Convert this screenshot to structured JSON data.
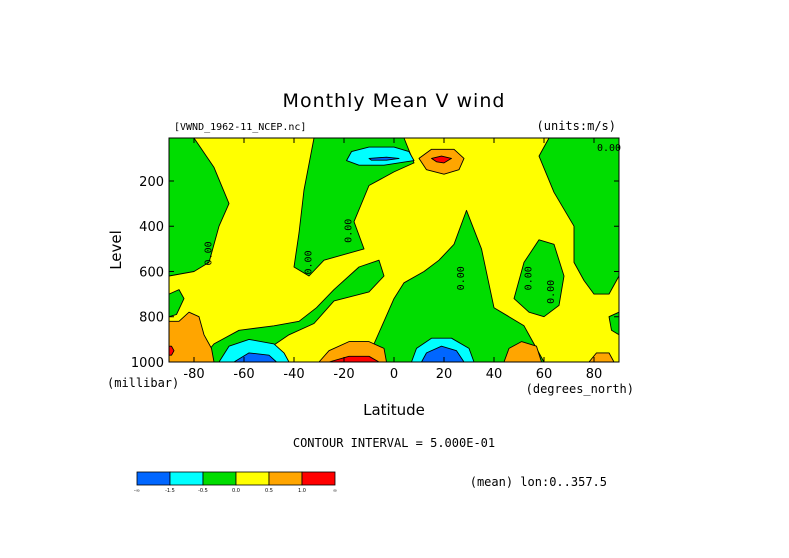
{
  "chart_data": {
    "type": "heatmap",
    "title": "Monthly Mean V wind",
    "file_label": "[VWND_1962-11_NCEP.nc]",
    "units_label": "(units:m/s)",
    "xlabel": "Latitude",
    "x_unit_label": "(degrees_north)",
    "ylabel": "Level",
    "y_unit_label": "(millibar)",
    "xlim": [
      -90,
      90
    ],
    "ylim": [
      1000,
      10
    ],
    "x_ticks": [
      {
        "value": -80,
        "label": "-80"
      },
      {
        "value": -60,
        "label": "-60"
      },
      {
        "value": -40,
        "label": "-40"
      },
      {
        "value": -20,
        "label": "-20"
      },
      {
        "value": 0,
        "label": "0"
      },
      {
        "value": 20,
        "label": "20"
      },
      {
        "value": 40,
        "label": "40"
      },
      {
        "value": 60,
        "label": "60"
      },
      {
        "value": 80,
        "label": "80"
      }
    ],
    "y_ticks": [
      {
        "value": 200,
        "label": "200"
      },
      {
        "value": 400,
        "label": "400"
      },
      {
        "value": 600,
        "label": "600"
      },
      {
        "value": 800,
        "label": "800"
      },
      {
        "value": 1000,
        "label": "1000"
      }
    ],
    "contour_interval_text": "CONTOUR INTERVAL = 5.000E-01",
    "mean_text": "(mean) lon:0..357.5",
    "colorbar": {
      "colors": [
        "#0066ff",
        "#00ffff",
        "#00dd00",
        "#ffff00",
        "#ffa500",
        "#ff0000"
      ],
      "labels": [
        "-∞",
        "-1.5",
        "-0.5",
        "0.0",
        "0.5",
        "1.0",
        "∞"
      ]
    },
    "zero_contour_labels": [
      {
        "text": "0.00",
        "lat": -73,
        "level": 520
      },
      {
        "text": "0.00",
        "lat": -33,
        "level": 560
      },
      {
        "text": "0.00",
        "lat": -17,
        "level": 420
      },
      {
        "text": "0.00",
        "lat": 28,
        "level": 630
      },
      {
        "text": "0.00",
        "lat": 55,
        "level": 630
      },
      {
        "text": "0.00",
        "lat": 64,
        "level": 690
      },
      {
        "text": "0.00",
        "lat": 86,
        "level": 68
      }
    ],
    "regions": [
      {
        "name": "neg-sh-west",
        "color": "#00dd00",
        "poly": [
          [
            -90,
            10
          ],
          [
            -80,
            10
          ],
          [
            -72,
            140
          ],
          [
            -66,
            300
          ],
          [
            -70,
            400
          ],
          [
            -74,
            560
          ],
          [
            -80,
            600
          ],
          [
            -90,
            620
          ]
        ]
      },
      {
        "name": "neg-sh-west-lower",
        "color": "#00dd00",
        "poly": [
          [
            -90,
            700
          ],
          [
            -86,
            680
          ],
          [
            -84,
            720
          ],
          [
            -87,
            790
          ],
          [
            -90,
            800
          ]
        ]
      },
      {
        "name": "neg-tropics-upper",
        "color": "#00dd00",
        "poly": [
          [
            -32,
            10
          ],
          [
            4,
            10
          ],
          [
            8,
            120
          ],
          [
            0,
            160
          ],
          [
            -10,
            220
          ],
          [
            -16,
            380
          ],
          [
            -12,
            500
          ],
          [
            -28,
            550
          ],
          [
            -34,
            620
          ],
          [
            -40,
            580
          ],
          [
            -38,
            430
          ],
          [
            -36,
            240
          ]
        ]
      },
      {
        "name": "neg-sh-lower",
        "color": "#00dd00",
        "poly": [
          [
            -78,
            1000
          ],
          [
            -72,
            920
          ],
          [
            -62,
            860
          ],
          [
            -48,
            840
          ],
          [
            -38,
            820
          ],
          [
            -31,
            760
          ],
          [
            -24,
            680
          ],
          [
            -14,
            580
          ],
          [
            -6,
            550
          ],
          [
            -4,
            620
          ],
          [
            -10,
            690
          ],
          [
            -24,
            730
          ],
          [
            -32,
            830
          ],
          [
            -42,
            880
          ],
          [
            -50,
            940
          ],
          [
            -54,
            1000
          ]
        ]
      },
      {
        "name": "neg-eq-lower",
        "color": "#00dd00",
        "poly": [
          [
            -8,
            1000
          ],
          [
            -8,
            920
          ],
          [
            -4,
            820
          ],
          [
            0,
            720
          ],
          [
            4,
            650
          ],
          [
            12,
            600
          ],
          [
            18,
            550
          ],
          [
            24,
            480
          ],
          [
            29,
            330
          ],
          [
            35,
            500
          ],
          [
            40,
            760
          ],
          [
            46,
            800
          ],
          [
            52,
            840
          ],
          [
            55,
            900
          ],
          [
            60,
            1000
          ]
        ]
      },
      {
        "name": "neg-nh-polar",
        "color": "#00dd00",
        "poly": [
          [
            62,
            10
          ],
          [
            90,
            10
          ],
          [
            90,
            620
          ],
          [
            86,
            700
          ],
          [
            80,
            700
          ],
          [
            76,
            640
          ],
          [
            72,
            560
          ],
          [
            72,
            400
          ],
          [
            64,
            250
          ],
          [
            58,
            90
          ]
        ]
      },
      {
        "name": "neg-nh-mid",
        "color": "#00dd00",
        "poly": [
          [
            48,
            720
          ],
          [
            52,
            560
          ],
          [
            58,
            460
          ],
          [
            64,
            480
          ],
          [
            68,
            620
          ],
          [
            66,
            750
          ],
          [
            60,
            800
          ],
          [
            54,
            780
          ]
        ]
      },
      {
        "name": "neg-nh-edge",
        "color": "#00dd00",
        "poly": [
          [
            86,
            800
          ],
          [
            90,
            780
          ],
          [
            90,
            880
          ],
          [
            87,
            860
          ]
        ]
      },
      {
        "name": "neg-jet-sh",
        "color": "#00ffff",
        "poly": [
          [
            -17,
            70
          ],
          [
            -10,
            50
          ],
          [
            0,
            50
          ],
          [
            6,
            70
          ],
          [
            8,
            110
          ],
          [
            -4,
            130
          ],
          [
            -14,
            130
          ],
          [
            -19,
            110
          ]
        ]
      },
      {
        "name": "neg-jet-sh-core",
        "color": "#0066ff",
        "poly": [
          [
            -10,
            100
          ],
          [
            -3,
            95
          ],
          [
            2,
            100
          ],
          [
            -3,
            108
          ],
          [
            -9,
            108
          ]
        ]
      },
      {
        "name": "neg-sh-lower-jet",
        "color": "#00ffff",
        "poly": [
          [
            -70,
            1000
          ],
          [
            -66,
            930
          ],
          [
            -58,
            900
          ],
          [
            -48,
            920
          ],
          [
            -44,
            960
          ],
          [
            -42,
            1000
          ]
        ]
      },
      {
        "name": "neg-sh-lower-core",
        "color": "#0066ff",
        "poly": [
          [
            -64,
            1000
          ],
          [
            -58,
            960
          ],
          [
            -50,
            970
          ],
          [
            -47,
            1000
          ]
        ]
      },
      {
        "name": "neg-eq-surface-jet",
        "color": "#00ffff",
        "poly": [
          [
            7,
            1000
          ],
          [
            9,
            940
          ],
          [
            15,
            895
          ],
          [
            23,
            895
          ],
          [
            30,
            940
          ],
          [
            32,
            1000
          ]
        ]
      },
      {
        "name": "neg-eq-surface-core",
        "color": "#0066ff",
        "poly": [
          [
            11,
            1000
          ],
          [
            13,
            960
          ],
          [
            19,
            930
          ],
          [
            25,
            950
          ],
          [
            28,
            1000
          ]
        ]
      },
      {
        "name": "pos-sh-surface",
        "color": "#ffa500",
        "poly": [
          [
            -90,
            820
          ],
          [
            -86,
            820
          ],
          [
            -82,
            780
          ],
          [
            -78,
            800
          ],
          [
            -76,
            880
          ],
          [
            -73,
            940
          ],
          [
            -72,
            1000
          ],
          [
            -90,
            1000
          ]
        ]
      },
      {
        "name": "pos-subtropics-surface",
        "color": "#ffa500",
        "poly": [
          [
            -30,
            1000
          ],
          [
            -26,
            950
          ],
          [
            -18,
            910
          ],
          [
            -10,
            910
          ],
          [
            -4,
            940
          ],
          [
            -3,
            1000
          ]
        ]
      },
      {
        "name": "pos-subtropics-core",
        "color": "#ff0000",
        "poly": [
          [
            -26,
            1000
          ],
          [
            -18,
            975
          ],
          [
            -10,
            975
          ],
          [
            -6,
            1000
          ]
        ]
      },
      {
        "name": "pos-nh-surface",
        "color": "#ffa500",
        "poly": [
          [
            44,
            1000
          ],
          [
            46,
            940
          ],
          [
            51,
            910
          ],
          [
            57,
            930
          ],
          [
            59,
            1000
          ]
        ]
      },
      {
        "name": "pos-nh-polar-surface",
        "color": "#ffa500",
        "poly": [
          [
            78,
            1000
          ],
          [
            81,
            960
          ],
          [
            86,
            960
          ],
          [
            88,
            1000
          ]
        ]
      },
      {
        "name": "pos-jet-nh",
        "color": "#ffa500",
        "poly": [
          [
            10,
            100
          ],
          [
            15,
            60
          ],
          [
            24,
            60
          ],
          [
            28,
            100
          ],
          [
            26,
            150
          ],
          [
            20,
            170
          ],
          [
            13,
            150
          ]
        ]
      },
      {
        "name": "pos-jet-nh-core",
        "color": "#ff0000",
        "poly": [
          [
            15,
            100
          ],
          [
            19,
            90
          ],
          [
            23,
            100
          ],
          [
            20,
            120
          ],
          [
            17,
            115
          ]
        ]
      },
      {
        "name": "pos-sh-edge",
        "color": "#ff0000",
        "poly": [
          [
            -90,
            930
          ],
          [
            -89,
            930
          ],
          [
            -88,
            950
          ],
          [
            -89,
            970
          ],
          [
            -90,
            970
          ]
        ]
      }
    ]
  }
}
